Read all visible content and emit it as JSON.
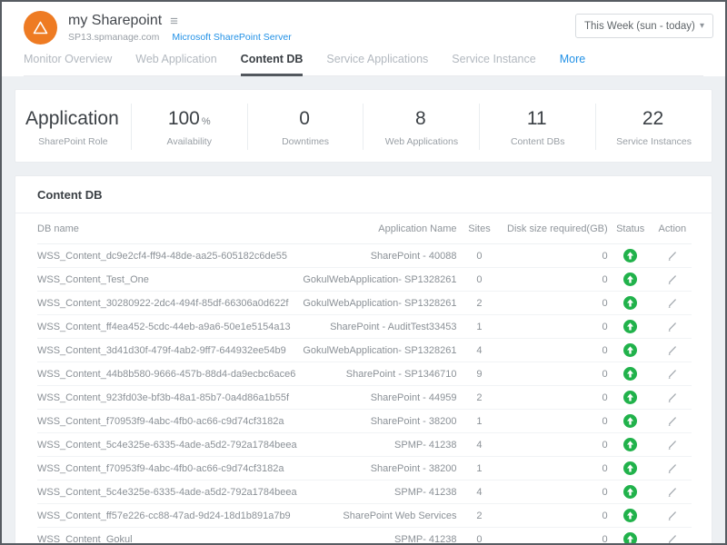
{
  "colors": {
    "accent_orange": "#ee7b23",
    "status_up_green": "#21b24b",
    "link_blue": "#2291e6"
  },
  "header": {
    "title": "my Sharepoint",
    "host": "SP13.spmanage.com",
    "type_link": "Microsoft SharePoint Server",
    "time_range": "This Week (sun - today)"
  },
  "tabs": {
    "items": [
      {
        "label": "Monitor Overview"
      },
      {
        "label": "Web Application"
      },
      {
        "label": "Content DB"
      },
      {
        "label": "Service Applications"
      },
      {
        "label": "Service Instance"
      },
      {
        "label": "More"
      }
    ]
  },
  "stats": {
    "items": [
      {
        "value": "Application",
        "suffix": "",
        "label": "SharePoint Role"
      },
      {
        "value": "100",
        "suffix": "%",
        "label": "Availability"
      },
      {
        "value": "0",
        "suffix": "",
        "label": "Downtimes"
      },
      {
        "value": "8",
        "suffix": "",
        "label": "Web Applications"
      },
      {
        "value": "11",
        "suffix": "",
        "label": "Content DBs"
      },
      {
        "value": "22",
        "suffix": "",
        "label": "Service Instances"
      }
    ]
  },
  "section": {
    "title": "Content DB"
  },
  "table": {
    "columns": [
      "DB name",
      "Application Name",
      "Sites",
      "Disk size required(GB)",
      "Status",
      "Action"
    ],
    "rows": [
      {
        "db_name": "WSS_Content_dc9e2cf4-ff94-48de-aa25-605182c6de55",
        "app_name": "SharePoint - 40088",
        "sites": "0",
        "disk_size_gb": "0",
        "status": "up",
        "action": "edit"
      },
      {
        "db_name": "WSS_Content_Test_One",
        "app_name": "GokulWebApplication- SP1328261",
        "sites": "0",
        "disk_size_gb": "0",
        "status": "up",
        "action": "edit"
      },
      {
        "db_name": "WSS_Content_30280922-2dc4-494f-85df-66306a0d622f",
        "app_name": "GokulWebApplication- SP1328261",
        "sites": "2",
        "disk_size_gb": "0",
        "status": "up",
        "action": "edit"
      },
      {
        "db_name": "WSS_Content_ff4ea452-5cdc-44eb-a9a6-50e1e5154a13",
        "app_name": "SharePoint - AuditTest33453",
        "sites": "1",
        "disk_size_gb": "0",
        "status": "up",
        "action": "edit"
      },
      {
        "db_name": "WSS_Content_3d41d30f-479f-4ab2-9ff7-644932ee54b9",
        "app_name": "GokulWebApplication- SP1328261",
        "sites": "4",
        "disk_size_gb": "0",
        "status": "up",
        "action": "edit"
      },
      {
        "db_name": "WSS_Content_44b8b580-9666-457b-88d4-da9ecbc6ace6",
        "app_name": "SharePoint - SP1346710",
        "sites": "9",
        "disk_size_gb": "0",
        "status": "up",
        "action": "edit"
      },
      {
        "db_name": "WSS_Content_923fd03e-bf3b-48a1-85b7-0a4d86a1b55f",
        "app_name": "SharePoint - 44959",
        "sites": "2",
        "disk_size_gb": "0",
        "status": "up",
        "action": "edit"
      },
      {
        "db_name": "WSS_Content_f70953f9-4abc-4fb0-ac66-c9d74cf3182a",
        "app_name": "SharePoint - 38200",
        "sites": "1",
        "disk_size_gb": "0",
        "status": "up",
        "action": "edit"
      },
      {
        "db_name": "WSS_Content_5c4e325e-6335-4ade-a5d2-792a1784beea",
        "app_name": "SPMP- 41238",
        "sites": "4",
        "disk_size_gb": "0",
        "status": "up",
        "action": "edit"
      },
      {
        "db_name": "WSS_Content_f70953f9-4abc-4fb0-ac66-c9d74cf3182a",
        "app_name": "SharePoint - 38200",
        "sites": "1",
        "disk_size_gb": "0",
        "status": "up",
        "action": "edit"
      },
      {
        "db_name": "WSS_Content_5c4e325e-6335-4ade-a5d2-792a1784beea",
        "app_name": "SPMP- 41238",
        "sites": "4",
        "disk_size_gb": "0",
        "status": "up",
        "action": "edit"
      },
      {
        "db_name": "WSS_Content_ff57e226-cc88-47ad-9d24-18d1b891a7b9",
        "app_name": "SharePoint Web Services",
        "sites": "2",
        "disk_size_gb": "0",
        "status": "up",
        "action": "edit"
      },
      {
        "db_name": "WSS_Content_Gokul",
        "app_name": "SPMP- 41238",
        "sites": "0",
        "disk_size_gb": "0",
        "status": "up",
        "action": "edit"
      }
    ]
  }
}
